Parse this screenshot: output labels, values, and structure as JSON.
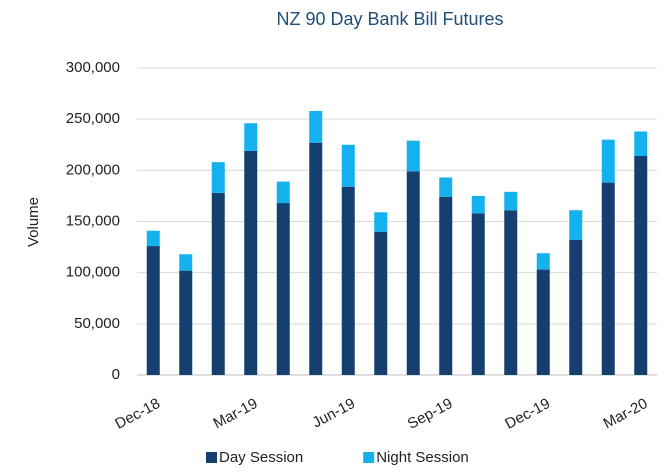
{
  "chart_data": {
    "type": "stacked_bar",
    "title": "NZ 90 Day Bank Bill Futures",
    "y_label": "Volume",
    "categories": [
      "Dec-18",
      null,
      null,
      "Mar-19",
      null,
      null,
      "Jun-19",
      null,
      null,
      "Sep-19",
      null,
      null,
      "Dec-19",
      null,
      null,
      "Mar-20"
    ],
    "series": [
      {
        "name": "Day Session",
        "color": "#143f6e",
        "values": [
          126000,
          102000,
          178000,
          219000,
          168000,
          227000,
          184000,
          140000,
          199000,
          174000,
          158000,
          161000,
          103000,
          132000,
          188000,
          214000
        ]
      },
      {
        "name": "Night Session",
        "color": "#15b1ee",
        "values": [
          15000,
          16000,
          30000,
          27000,
          21000,
          31000,
          41000,
          19000,
          30000,
          19000,
          17000,
          18000,
          16000,
          29000,
          42000,
          24000
        ]
      }
    ],
    "ylim": [
      0,
      300000
    ],
    "yticks": [
      0,
      {
        "value": 50000,
        "label": "50,000"
      },
      {
        "value": 100000,
        "label": "100,000"
      },
      {
        "value": 150000,
        "label": "150,000"
      },
      {
        "value": 200000,
        "label": "200,000"
      },
      {
        "value": 250000,
        "label": "250,000"
      },
      {
        "value": 300000,
        "label": "300,000"
      }
    ],
    "grid": true,
    "legend": "bottom"
  }
}
